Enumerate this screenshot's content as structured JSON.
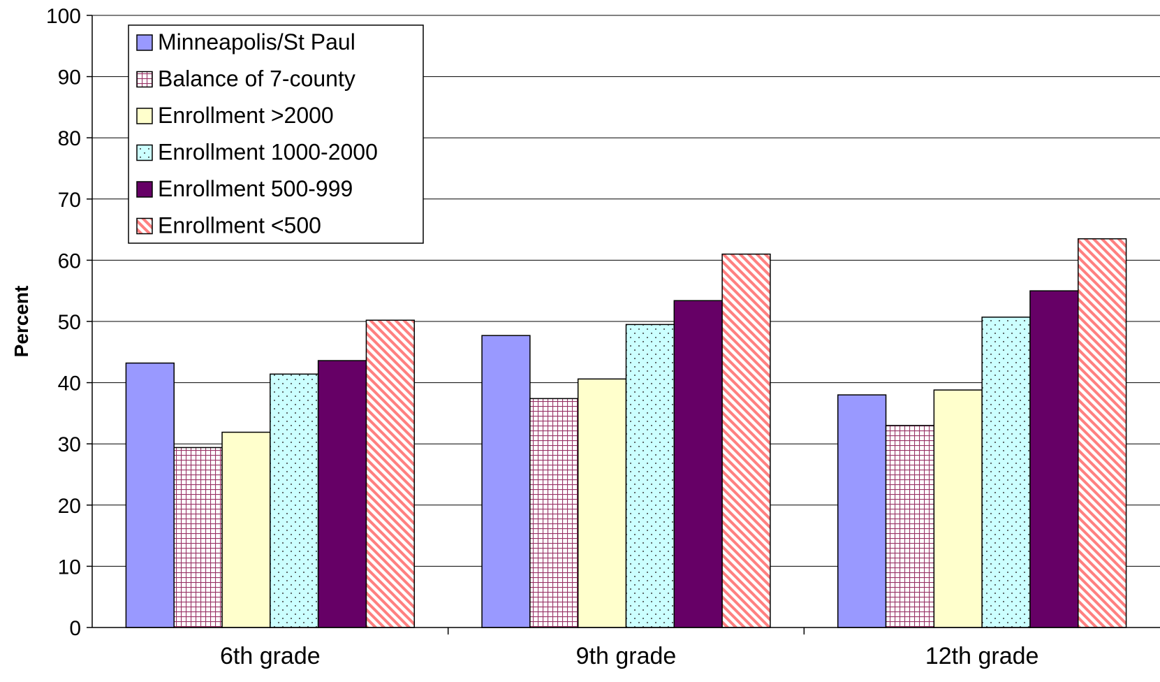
{
  "chart_data": {
    "type": "bar",
    "title": "",
    "xlabel": "",
    "ylabel": "Percent",
    "ylim": [
      0,
      100
    ],
    "yticks": [
      0,
      10,
      20,
      30,
      40,
      50,
      60,
      70,
      80,
      90,
      100
    ],
    "grid": true,
    "legend_position": "top-left",
    "categories": [
      "6th grade",
      "9th grade",
      "12th grade"
    ],
    "series": [
      {
        "name": "Minneapolis/St Paul",
        "values": [
          43.2,
          47.7,
          38.0
        ],
        "color": "#9999ff",
        "pattern": "solid"
      },
      {
        "name": "Balance of 7-county",
        "values": [
          29.4,
          37.4,
          33.0
        ],
        "color": "#993366",
        "pattern": "grid"
      },
      {
        "name": "Enrollment >2000",
        "values": [
          31.9,
          40.6,
          38.8
        ],
        "color": "#ffffcc",
        "pattern": "solid"
      },
      {
        "name": "Enrollment 1000-2000",
        "values": [
          41.4,
          49.5,
          50.7
        ],
        "color": "#ccffff",
        "pattern": "dots"
      },
      {
        "name": "Enrollment 500-999",
        "values": [
          43.6,
          53.4,
          55.0
        ],
        "color": "#660066",
        "pattern": "solid"
      },
      {
        "name": "Enrollment <500",
        "values": [
          50.2,
          61.0,
          63.5
        ],
        "color": "#ff8080",
        "pattern": "diagonal"
      }
    ]
  }
}
